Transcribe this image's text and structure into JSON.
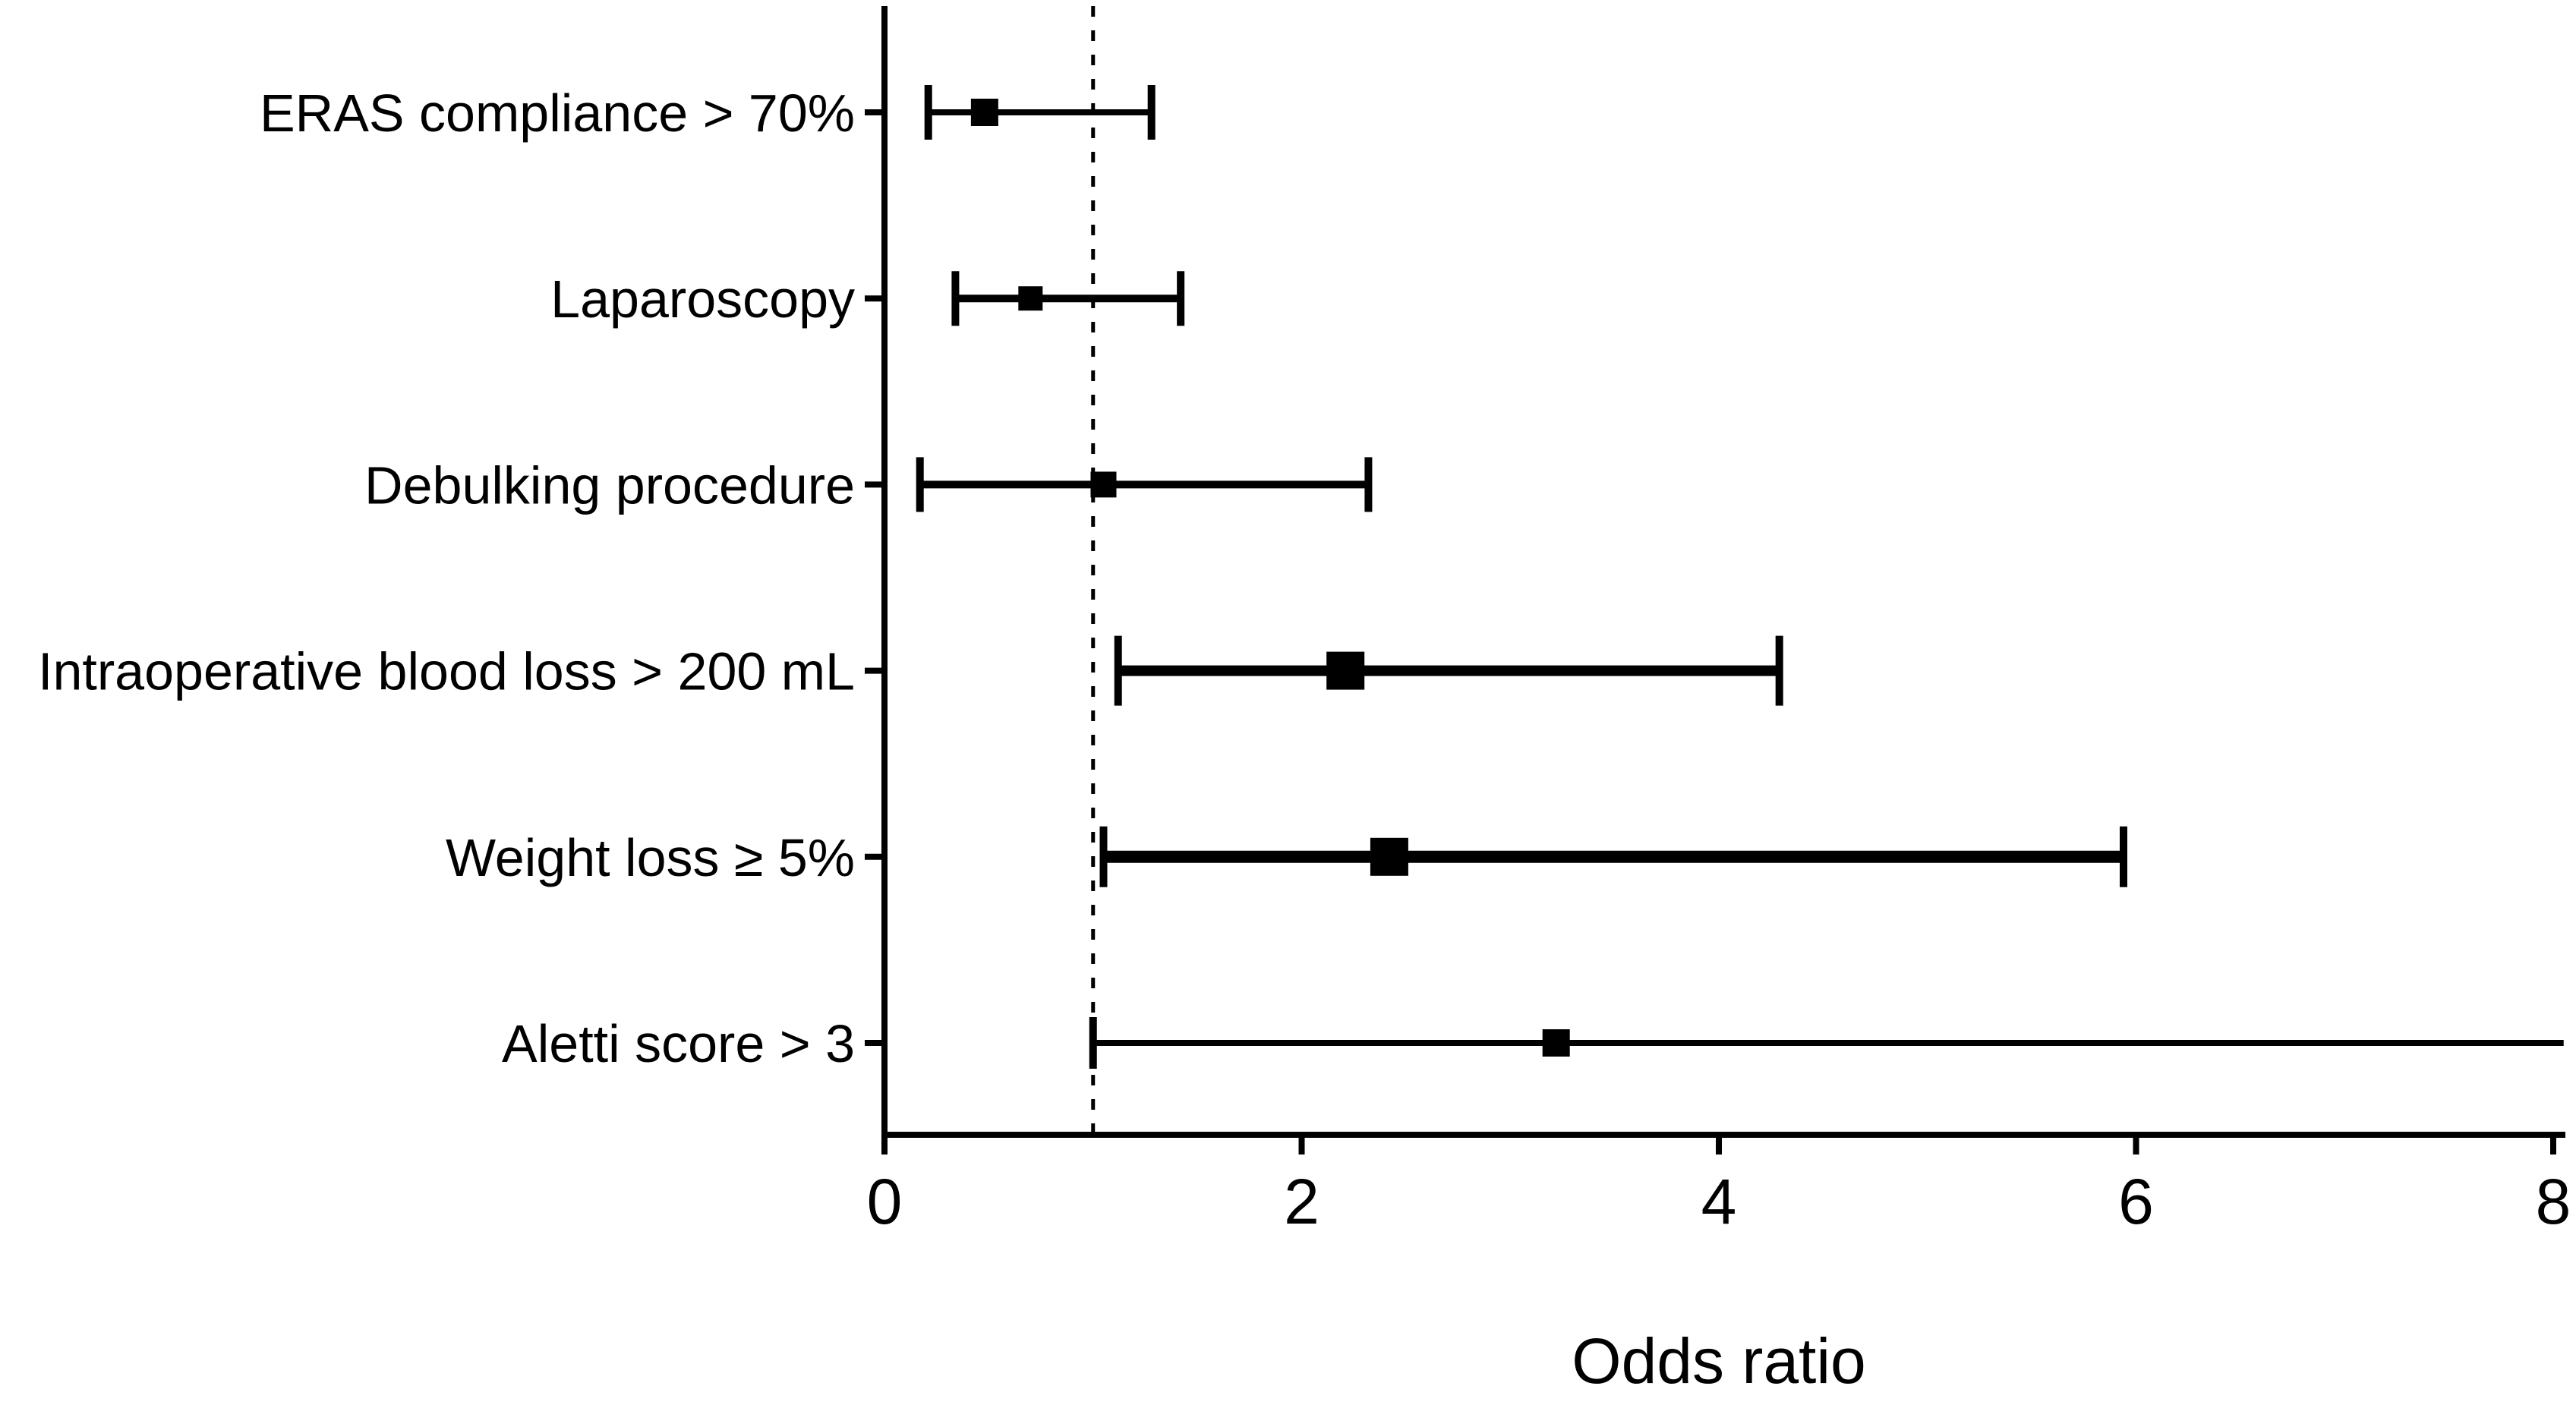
{
  "figure": {
    "background": "#ffffff",
    "ink": "#000000"
  },
  "chart_data": {
    "type": "scatter",
    "subtype": "forest_plot",
    "title": "",
    "xlabel": "Odds ratio",
    "ylabel": "",
    "xlim": [
      0,
      8
    ],
    "x_ticks": [
      "0",
      "2",
      "4",
      "6",
      "8"
    ],
    "grid": false,
    "legend": false,
    "reference_line": {
      "x": 1,
      "style": "dashed"
    },
    "rows": [
      {
        "label": "ERAS compliance > 70%",
        "or": 0.48,
        "ci_low": 0.21,
        "ci_high": 1.28,
        "ci_high_clipped": false,
        "marker_size": 36,
        "line_width": 8,
        "cap_size": 36
      },
      {
        "label": "Laparoscopy",
        "or": 0.7,
        "ci_low": 0.34,
        "ci_high": 1.42,
        "ci_high_clipped": false,
        "marker_size": 32,
        "line_width": 10,
        "cap_size": 36
      },
      {
        "label": "Debulking procedure",
        "or": 1.05,
        "ci_low": 0.17,
        "ci_high": 2.32,
        "ci_high_clipped": false,
        "marker_size": 34,
        "line_width": 10,
        "cap_size": 36
      },
      {
        "label": "Intraoperative blood loss > 200 mL",
        "or": 2.21,
        "ci_low": 1.12,
        "ci_high": 4.29,
        "ci_high_clipped": false,
        "marker_size": 50,
        "line_width": 14,
        "cap_size": 46
      },
      {
        "label": "Weight loss ≥ 5%",
        "or": 2.42,
        "ci_low": 1.05,
        "ci_high": 5.94,
        "ci_high_clipped": false,
        "marker_size": 50,
        "line_width": 16,
        "cap_size": 40
      },
      {
        "label": "Aletti score > 3",
        "or": 3.22,
        "ci_low": 1.0,
        "ci_high": 8.05,
        "ci_high_clipped": true,
        "marker_size": 36,
        "line_width": 8,
        "cap_size": 34
      }
    ]
  }
}
